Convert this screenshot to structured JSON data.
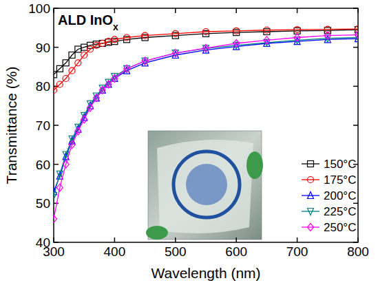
{
  "chart_data": {
    "type": "line",
    "title": "ALD InOx",
    "x_label": "Wavelength (nm)",
    "y_label": "Transmittance (%)",
    "x": [
      300,
      310,
      320,
      330,
      340,
      350,
      360,
      370,
      380,
      390,
      400,
      420,
      450,
      500,
      550,
      600,
      650,
      700,
      750,
      800
    ],
    "series": [
      {
        "name": "150°C",
        "color": "#000000",
        "marker": "square",
        "values": [
          83,
          84.5,
          86,
          88,
          89.5,
          90,
          90.5,
          90.8,
          91,
          91.3,
          91.5,
          92,
          92.5,
          93,
          93.5,
          93.8,
          94,
          94.2,
          94.3,
          94.5
        ]
      },
      {
        "name": "175°C",
        "color": "#ff0000",
        "marker": "circle",
        "values": [
          79,
          80.5,
          82,
          84,
          86,
          88,
          89.5,
          90.5,
          91,
          91.5,
          92,
          92.5,
          93,
          93.5,
          94,
          94.2,
          94.4,
          94.5,
          94.6,
          94.7
        ]
      },
      {
        "name": "200°C",
        "color": "#0000ff",
        "marker": "triangle-up",
        "values": [
          53,
          57,
          62,
          66,
          69,
          72,
          75,
          77,
          79,
          80.5,
          82,
          84,
          86,
          88,
          89.3,
          90.2,
          91,
          91.5,
          92,
          92.2
        ]
      },
      {
        "name": "225°C",
        "color": "#008080",
        "marker": "triangle-down",
        "values": [
          52,
          57.5,
          62.5,
          66.5,
          69.5,
          72.5,
          75.5,
          77.5,
          79.5,
          81,
          82.5,
          84.5,
          86.5,
          88.5,
          89.7,
          90.5,
          91.2,
          91.8,
          92.3,
          92.5
        ]
      },
      {
        "name": "250°C",
        "color": "#ff00ff",
        "marker": "diamond",
        "values": [
          46,
          54,
          60,
          65,
          68.5,
          71.5,
          74.5,
          77,
          79,
          80.5,
          82,
          84.5,
          86.5,
          88.5,
          89.8,
          91,
          91.8,
          92.5,
          93,
          93.2
        ]
      }
    ],
    "xlim": [
      300,
      800
    ],
    "xticks": [
      300,
      400,
      500,
      600,
      700,
      800
    ],
    "ylim": [
      40,
      100
    ],
    "yticks": [
      40,
      50,
      60,
      70,
      80,
      90,
      100
    ],
    "grid": false,
    "legend": "right"
  }
}
